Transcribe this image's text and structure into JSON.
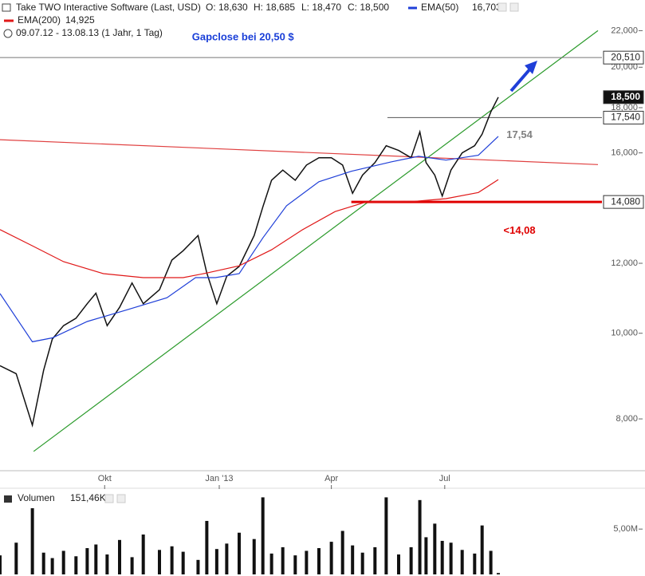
{
  "chart_data": {
    "type": "line",
    "header": {
      "title": "Take TWO Interactive Software (Last, USD)",
      "quotes": [
        "O: 18,630",
        "H: 18,685",
        "L: 18,470",
        "C: 18,500"
      ],
      "period": "09.07.12 - 13.08.13 (1 Jahr, 1 Tag)"
    },
    "log_scale": true,
    "xlim": [
      "2012-07-09",
      "2013-11-01"
    ],
    "xticks": [
      {
        "value": "2012-10-01",
        "label": "Okt"
      },
      {
        "value": "2013-01-01",
        "label": "Jan '13"
      },
      {
        "value": "2013-04-01",
        "label": "Apr"
      },
      {
        "value": "2013-07-01",
        "label": "Jul"
      }
    ],
    "ylim": [
      6.99,
      23.83
    ],
    "yticks": [
      {
        "value": 8,
        "label": "8,000"
      },
      {
        "value": 10,
        "label": "10,000"
      },
      {
        "value": 12,
        "label": "12,000"
      },
      {
        "value": 16,
        "label": "16,000"
      },
      {
        "value": 18,
        "label": "18,000"
      },
      {
        "value": 20,
        "label": "20,000"
      },
      {
        "value": 22,
        "label": "22,000"
      }
    ],
    "series": [
      {
        "name": "Take TWO",
        "color": "#111111",
        "x": [
          "2012-07-09",
          "2012-07-22",
          "2012-08-04",
          "2012-08-13",
          "2012-08-20",
          "2012-08-29",
          "2012-09-08",
          "2012-09-17",
          "2012-09-24",
          "2012-10-03",
          "2012-10-13",
          "2012-10-23",
          "2012-11-01",
          "2012-11-14",
          "2012-11-24",
          "2012-12-03",
          "2012-12-15",
          "2012-12-22",
          "2012-12-30",
          "2013-01-07",
          "2013-01-17",
          "2013-01-29",
          "2013-02-05",
          "2013-02-12",
          "2013-02-21",
          "2013-03-03",
          "2013-03-12",
          "2013-03-22",
          "2013-04-01",
          "2013-04-10",
          "2013-04-18",
          "2013-04-26",
          "2013-05-06",
          "2013-05-15",
          "2013-05-25",
          "2013-06-04",
          "2013-06-11",
          "2013-06-16",
          "2013-06-23",
          "2013-06-29",
          "2013-07-06",
          "2013-07-15",
          "2013-07-25",
          "2013-07-31",
          "2013-08-07",
          "2013-08-13"
        ],
        "values": [
          9.19,
          9.0,
          7.87,
          9.08,
          9.85,
          10.2,
          10.4,
          10.8,
          11.1,
          10.2,
          10.7,
          11.4,
          10.8,
          11.2,
          12.1,
          12.4,
          12.9,
          11.7,
          10.8,
          11.6,
          11.9,
          12.9,
          13.9,
          14.9,
          15.3,
          14.9,
          15.5,
          15.8,
          15.8,
          15.5,
          14.4,
          15.1,
          15.6,
          16.3,
          16.1,
          15.8,
          16.9,
          15.6,
          15.1,
          14.3,
          15.3,
          16.0,
          16.3,
          16.8,
          17.8,
          18.5
        ]
      },
      {
        "name": "EMA(50)",
        "color": "#1f3fd8",
        "last_label": "16,703",
        "x": [
          "2012-07-09",
          "2012-08-04",
          "2012-08-20",
          "2012-09-17",
          "2012-10-19",
          "2012-11-20",
          "2012-12-13",
          "2012-12-29",
          "2013-01-17",
          "2013-02-05",
          "2013-02-24",
          "2013-03-22",
          "2013-04-17",
          "2013-05-19",
          "2013-06-10",
          "2013-07-02",
          "2013-07-28",
          "2013-08-13"
        ],
        "values": [
          11.09,
          9.78,
          9.88,
          10.31,
          10.63,
          10.97,
          11.56,
          11.56,
          11.68,
          12.82,
          13.94,
          14.84,
          15.25,
          15.63,
          15.86,
          15.7,
          15.9,
          16.703
        ]
      },
      {
        "name": "EMA(200)",
        "color": "#e01818",
        "last_label": "14,925",
        "x": [
          "2012-07-09",
          "2012-08-04",
          "2012-08-29",
          "2012-09-30",
          "2012-11-01",
          "2012-12-03",
          "2012-12-22",
          "2013-01-17",
          "2013-02-12",
          "2013-03-09",
          "2013-04-04",
          "2013-04-29",
          "2013-06-07",
          "2013-07-02",
          "2013-07-28",
          "2013-08-13"
        ],
        "values": [
          13.1,
          12.56,
          12.05,
          11.68,
          11.56,
          11.56,
          11.7,
          11.92,
          12.43,
          13.1,
          13.73,
          14.08,
          14.1,
          14.2,
          14.43,
          14.925
        ]
      }
    ],
    "trendlines": [
      {
        "color": "#2a9a2a",
        "x": [
          "2012-08-05",
          "2013-11-01"
        ],
        "values": [
          7.35,
          22.0
        ]
      },
      {
        "color": "#e04040",
        "x": [
          "2012-07-09",
          "2013-11-01"
        ],
        "values": [
          16.56,
          15.52
        ]
      }
    ],
    "levels": [
      {
        "value": 20.51,
        "label": "20,510",
        "line_color": "#777777"
      },
      {
        "value": 18.5,
        "label": "18,500",
        "highlight": true
      },
      {
        "value": 17.54,
        "label": "17,540",
        "line_color": "#555555",
        "from": "2013-05-16"
      },
      {
        "value": 14.08,
        "label": "14,080",
        "line_color": "#e00000",
        "from": "2013-04-17",
        "bold": true
      }
    ],
    "annotations": [
      {
        "text": "Gapclose bei 20,50 $",
        "color": "#1a3fd8",
        "x": "2013-01-20",
        "y": 21.6
      },
      {
        "text": "17,54",
        "color": "#808080",
        "x": "2013-08-30",
        "y": 16.75
      },
      {
        "text": "<14,08",
        "color": "#e00000",
        "x": "2013-08-30",
        "y": 13.05
      }
    ],
    "volume": {
      "name": "Volumen",
      "current": "151,46K",
      "color": "#111111",
      "ylim": [
        0,
        8800000
      ],
      "yticks": [
        {
          "value": 5000000,
          "label": "5,00M"
        }
      ],
      "values": [
        2100000,
        3500000,
        7300000,
        2400000,
        1800000,
        2600000,
        2000000,
        2900000,
        3300000,
        2200000,
        3800000,
        1900000,
        4400000,
        2700000,
        3100000,
        2500000,
        1600000,
        5900000,
        2800000,
        3400000,
        4600000,
        3900000,
        8500000,
        2300000,
        3000000,
        2100000,
        2600000,
        2900000,
        3600000,
        4800000,
        3200000,
        2400000,
        3000000,
        8500000,
        2200000,
        3000000,
        8200000,
        4100000,
        5600000,
        3700000,
        3500000,
        2700000,
        2300000,
        5400000,
        2600000,
        151460
      ]
    }
  }
}
